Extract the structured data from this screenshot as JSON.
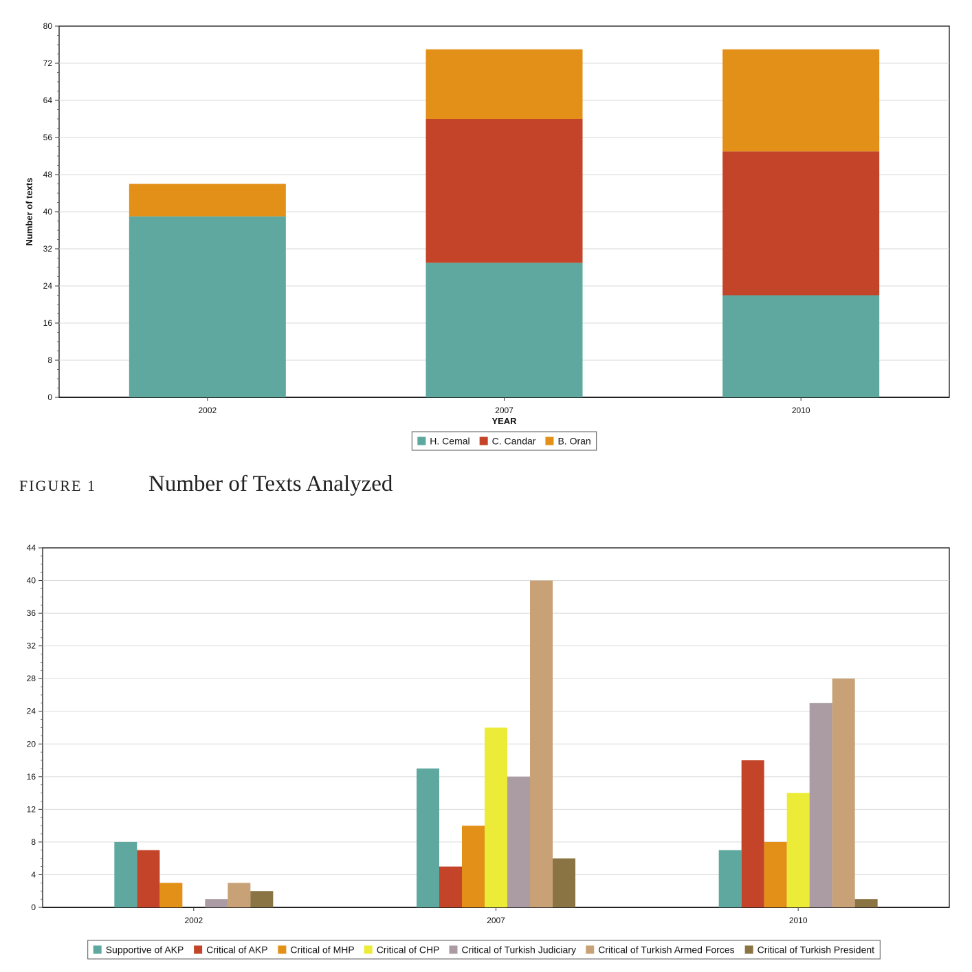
{
  "figure1": {
    "label": "FIGURE 1",
    "title": "Number of Texts Analyzed"
  },
  "chart_data": [
    {
      "type": "bar",
      "stacked": true,
      "categories": [
        "2002",
        "2007",
        "2010"
      ],
      "series": [
        {
          "name": "H. Cemal",
          "color": "#5ea89f",
          "values": [
            39,
            29,
            22
          ]
        },
        {
          "name": "C. Candar",
          "color": "#c34428",
          "values": [
            0,
            31,
            31
          ]
        },
        {
          "name": "B. Oran",
          "color": "#e39018",
          "values": [
            7,
            15,
            22
          ]
        }
      ],
      "title": "",
      "xlabel": "YEAR",
      "ylabel": "Number of texts",
      "ylim": [
        0,
        80
      ],
      "yticks": [
        "0",
        "8",
        "16",
        "24",
        "32",
        "40",
        "48",
        "56",
        "64",
        "72",
        "80"
      ],
      "grid": true,
      "legend": "bottom-center"
    },
    {
      "type": "bar",
      "stacked": false,
      "categories": [
        "2002",
        "2007",
        "2010"
      ],
      "series": [
        {
          "name": "Supportive of AKP",
          "color": "#5ea89f",
          "values": [
            8,
            17,
            7
          ]
        },
        {
          "name": "Critical of AKP",
          "color": "#c34428",
          "values": [
            7,
            5,
            18
          ]
        },
        {
          "name": "Critical of MHP",
          "color": "#e39018",
          "values": [
            3,
            10,
            8
          ]
        },
        {
          "name": "Critical of CHP",
          "color": "#eceb37",
          "values": [
            0,
            22,
            14
          ]
        },
        {
          "name": "Critical of Turkish Judiciary",
          "color": "#ab9ca4",
          "values": [
            1,
            16,
            25
          ]
        },
        {
          "name": "Critical of Turkish Armed Forces",
          "color": "#c8a276",
          "values": [
            3,
            40,
            28
          ]
        },
        {
          "name": "Critical of Turkish President",
          "color": "#8a7443",
          "values": [
            2,
            6,
            1
          ]
        }
      ],
      "title": "",
      "xlabel": "",
      "ylabel": "",
      "ylim": [
        0,
        44
      ],
      "yticks": [
        "0",
        "4",
        "8",
        "12",
        "16",
        "20",
        "24",
        "28",
        "32",
        "36",
        "40",
        "44"
      ],
      "grid": true,
      "legend": "bottom-center"
    }
  ]
}
